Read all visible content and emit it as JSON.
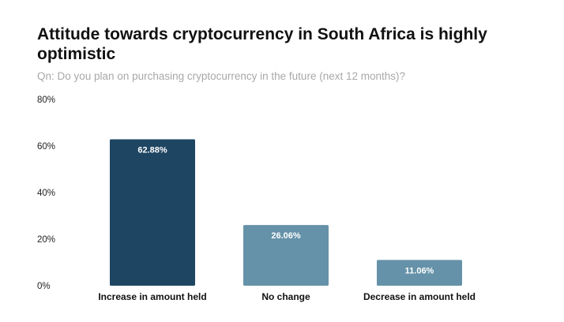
{
  "title": "Attitude towards cryptocurrency in South Africa is highly optimistic",
  "subtitle": "Qn: Do you plan on purchasing cryptocurrency in the future (next 12 months)?",
  "colors": {
    "primary_bar": "#1e4561",
    "secondary_bar": "#6592a8"
  },
  "chart_data": {
    "type": "bar",
    "title": "Attitude towards cryptocurrency in South Africa is highly optimistic",
    "subtitle": "Qn: Do you plan on purchasing cryptocurrency in the future (next 12 months)?",
    "categories": [
      "Increase in amount held",
      "No change",
      "Decrease in amount held"
    ],
    "values": [
      62.88,
      26.06,
      11.06
    ],
    "data_labels": [
      "62.88%",
      "26.06%",
      "11.06%"
    ],
    "y_ticks": [
      "0%",
      "20%",
      "40%",
      "60%",
      "80%"
    ],
    "ylim": [
      0,
      80
    ],
    "xlabel": "",
    "ylabel": "",
    "grid": false,
    "legend": "none"
  }
}
